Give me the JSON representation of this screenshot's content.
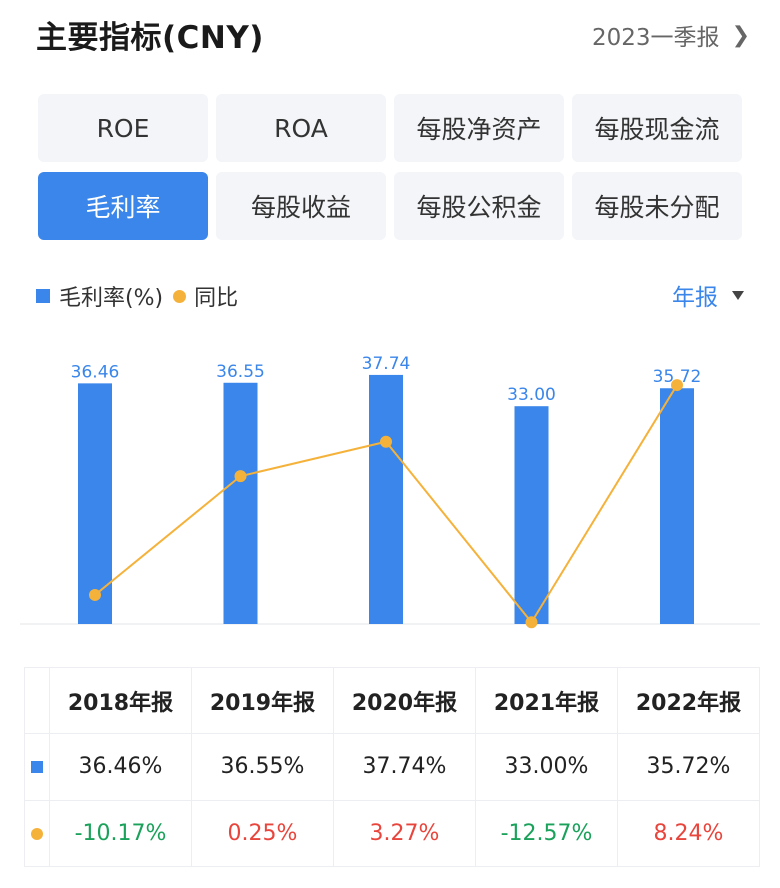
{
  "header": {
    "title": "主要指标(CNY)",
    "period": "2023一季报"
  },
  "metric_tabs": [
    {
      "label": "ROE",
      "active": false
    },
    {
      "label": "ROA",
      "active": false
    },
    {
      "label": "每股净资产",
      "active": false
    },
    {
      "label": "每股现金流",
      "active": false
    },
    {
      "label": "毛利率",
      "active": true
    },
    {
      "label": "每股收益",
      "active": false
    },
    {
      "label": "每股公积金",
      "active": false
    },
    {
      "label": "每股未分配",
      "active": false
    }
  ],
  "legend": {
    "bar_label": "毛利率(%)",
    "line_label": "同比",
    "frequency": "年报"
  },
  "colors": {
    "bar": "#3a86ea",
    "line": "#f5b23b",
    "negative": "#1aa15a",
    "positive": "#e8453c"
  },
  "chart_data": {
    "type": "bar",
    "categories": [
      "2018年报",
      "2019年报",
      "2020年报",
      "2021年报",
      "2022年报"
    ],
    "series": [
      {
        "name": "毛利率(%)",
        "type": "bar",
        "values": [
          36.46,
          36.55,
          37.74,
          33.0,
          35.72
        ],
        "labels": [
          "36.46",
          "36.55",
          "37.74",
          "33.00",
          "35.72"
        ]
      },
      {
        "name": "同比",
        "type": "line",
        "values": [
          -10.17,
          0.25,
          3.27,
          -12.57,
          8.24
        ]
      }
    ]
  },
  "table": {
    "headers": [
      "2018年报",
      "2019年报",
      "2020年报",
      "2021年报",
      "2022年报"
    ],
    "bar_row": [
      "36.46%",
      "36.55%",
      "37.74%",
      "33.00%",
      "35.72%"
    ],
    "yoy_row": [
      "-10.17%",
      "0.25%",
      "3.27%",
      "-12.57%",
      "8.24%"
    ]
  }
}
